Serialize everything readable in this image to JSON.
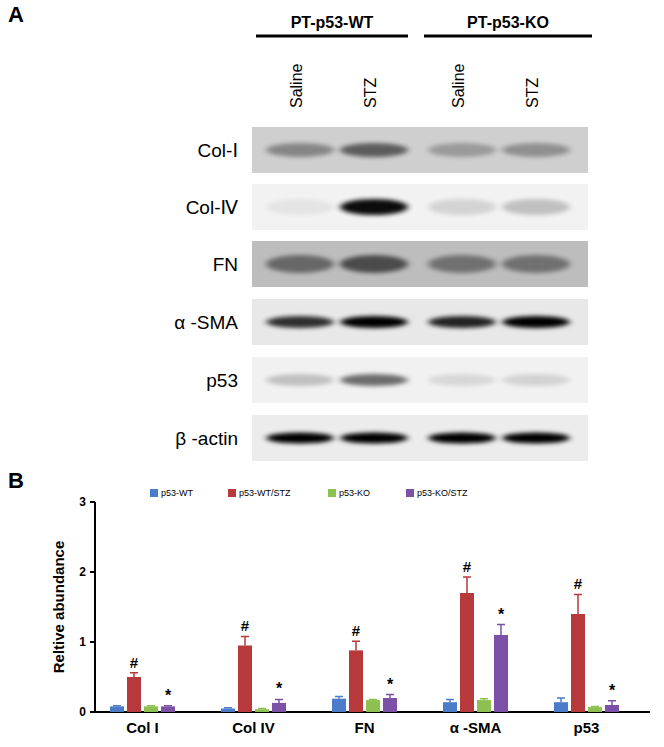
{
  "panel_a": {
    "label": "A",
    "groups": [
      "PT-p53-WT",
      "PT-p53-KO"
    ],
    "lanes": [
      "Saline",
      "STZ",
      "Saline",
      "STZ"
    ],
    "rows": [
      "Col-Ⅰ",
      "Col-Ⅳ",
      "FN",
      "α -SMA",
      "p53",
      "β -actin"
    ]
  },
  "chart_data": {
    "type": "bar",
    "panel_label": "B",
    "y_label": "Reltive abundance",
    "categories": [
      "Col I",
      "Col IV",
      "FN",
      "α -SMA",
      "p53"
    ],
    "ylim": [
      0,
      3
    ],
    "yticks": [
      0,
      1,
      2,
      3
    ],
    "legend": "top",
    "series": [
      {
        "name": "p53-WT",
        "color": "#4a7cc9",
        "values": [
          0.08,
          0.05,
          0.19,
          0.14,
          0.14
        ],
        "errors": [
          0.01,
          0.01,
          0.03,
          0.04,
          0.06
        ]
      },
      {
        "name": "p53-WT/STZ",
        "color": "#b8393b",
        "values": [
          0.5,
          0.95,
          0.88,
          1.7,
          1.4
        ],
        "errors": [
          0.06,
          0.13,
          0.13,
          0.23,
          0.28
        ],
        "annotation": "#"
      },
      {
        "name": "p53-KO",
        "color": "#8cc152",
        "values": [
          0.08,
          0.04,
          0.17,
          0.17,
          0.07
        ],
        "errors": [
          0.01,
          0.01,
          0.01,
          0.02,
          0.01
        ]
      },
      {
        "name": "p53-KO/STZ",
        "color": "#7b52a6",
        "values": [
          0.08,
          0.13,
          0.2,
          1.1,
          0.1
        ],
        "errors": [
          0.01,
          0.05,
          0.05,
          0.15,
          0.06
        ],
        "annotation": "*"
      }
    ]
  }
}
